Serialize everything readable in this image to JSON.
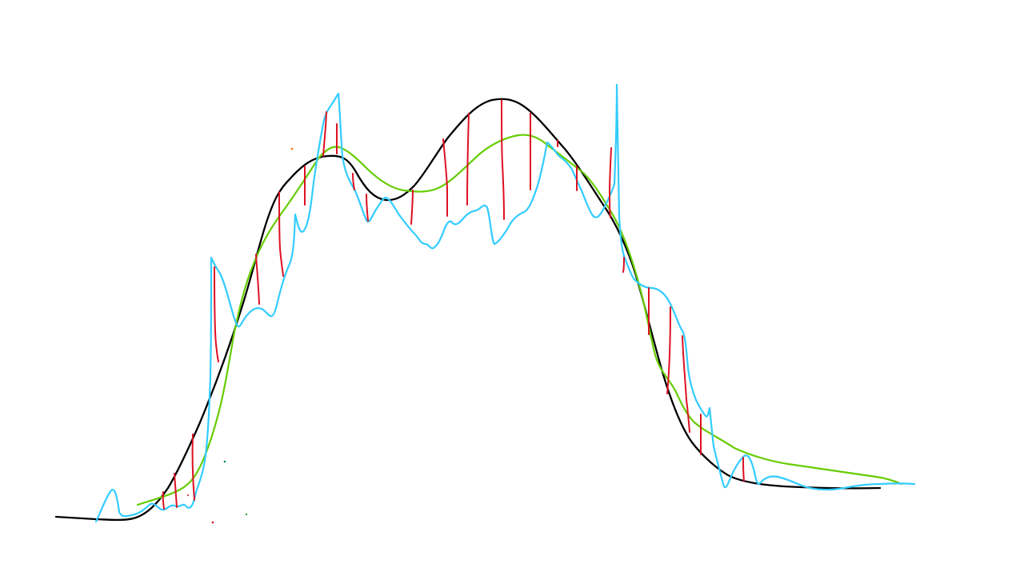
{
  "sketch": {
    "strokes": [
      {
        "name": "black-smooth-curve",
        "color": "#000000"
      },
      {
        "name": "green-smoothed-curve",
        "color": "#66cc00"
      },
      {
        "name": "blue-noisy-curve",
        "color": "#33ccff"
      },
      {
        "name": "red-residual-lines",
        "color": "#dd1122"
      }
    ],
    "stray_dots": [
      {
        "name": "orange-dot",
        "color": "#ff6600"
      },
      {
        "name": "teal-dot",
        "color": "#008866"
      },
      {
        "name": "red-dot",
        "color": "#dd1122"
      },
      {
        "name": "green-dot",
        "color": "#33aa33"
      }
    ]
  }
}
